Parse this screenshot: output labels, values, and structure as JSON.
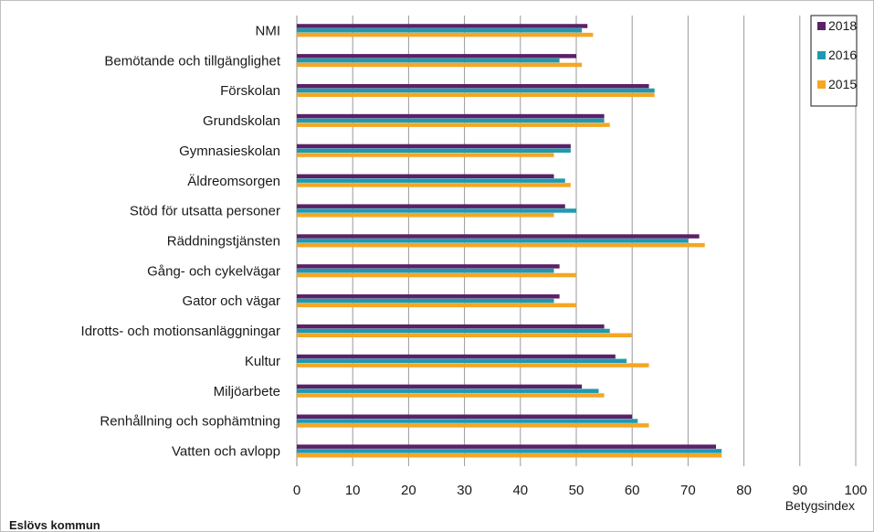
{
  "chart_data": {
    "type": "bar",
    "orientation": "horizontal",
    "title": "",
    "xlabel": "Betygsindex",
    "ylabel": "",
    "xlim": [
      0,
      100
    ],
    "xticks": [
      0,
      10,
      20,
      30,
      40,
      50,
      60,
      70,
      80,
      90,
      100
    ],
    "grid": "vertical",
    "legend_placement": "top-right",
    "categories": [
      "NMI",
      "Bemötande och tillgänglighet",
      "Förskolan",
      "Grundskolan",
      "Gymnasieskolan",
      "Äldreomsorgen",
      "Stöd för utsatta personer",
      "Räddningstjänsten",
      "Gång- och cykelvägar",
      "Gator och vägar",
      "Idrotts- och motionsanläggningar",
      "Kultur",
      "Miljöarbete",
      "Renhållning och sophämtning",
      "Vatten och avlopp"
    ],
    "series": [
      {
        "name": "2018",
        "color": "#5b2167",
        "values": [
          52,
          50,
          63,
          55,
          49,
          46,
          48,
          72,
          47,
          47,
          55,
          57,
          51,
          60,
          75
        ]
      },
      {
        "name": "2016",
        "color": "#1e9ab0",
        "values": [
          51,
          47,
          64,
          55,
          49,
          48,
          50,
          70,
          46,
          46,
          56,
          59,
          54,
          61,
          76
        ]
      },
      {
        "name": "2015",
        "color": "#f5a623",
        "values": [
          53,
          51,
          64,
          56,
          46,
          49,
          46,
          73,
          50,
          50,
          60,
          63,
          55,
          63,
          76
        ]
      }
    ]
  },
  "footer": {
    "text": "Eslövs kommun"
  }
}
